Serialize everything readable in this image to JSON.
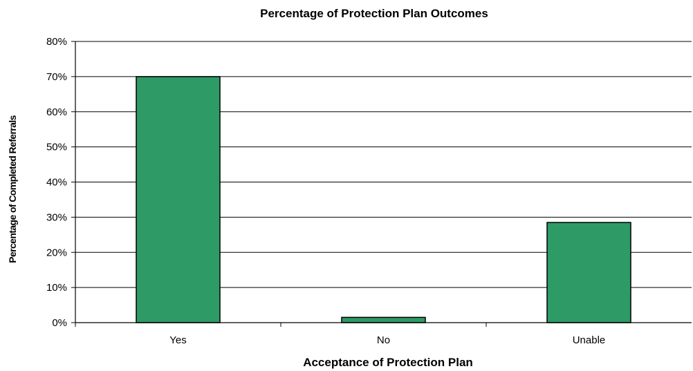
{
  "chart_data": {
    "type": "bar",
    "title": "Percentage of Protection Plan Outcomes",
    "xlabel": "Acceptance of Protection Plan",
    "ylabel": "Percentage of Completed Referrals",
    "categories": [
      "Yes",
      "No",
      "Unable"
    ],
    "values": [
      70,
      1.5,
      28.5
    ],
    "ylim": [
      0,
      80
    ],
    "yticks": [
      "0%",
      "10%",
      "20%",
      "30%",
      "40%",
      "50%",
      "60%",
      "70%",
      "80%"
    ],
    "grid": true,
    "legend": "none",
    "colors": {
      "bar_fill": "#2e9a66",
      "bar_stroke": "#000000",
      "grid": "#000000"
    }
  }
}
